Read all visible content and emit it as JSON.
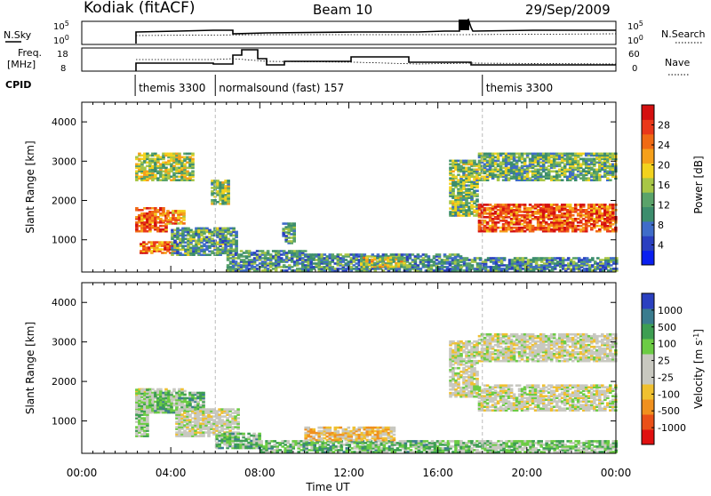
{
  "header": {
    "station": "Kodiak (fitACF)",
    "beam": "Beam 10",
    "date": "29/Sep/2009"
  },
  "top_panels": {
    "nsky_label": "N.Sky",
    "nsearch_label": "N.Search",
    "freq_label_line1": "Freq.",
    "freq_label_line2": "[MHz]",
    "nave_label": "Nave",
    "cpid_label": "CPID",
    "noise_ticks_left": [
      "10^5",
      "10^0"
    ],
    "noise_ticks_right": [
      "10^5",
      "10^0"
    ],
    "freq_ticks": [
      "18",
      "8"
    ],
    "nave_ticks": [
      "60",
      "0"
    ]
  },
  "cpid": [
    {
      "start": 2.4,
      "end": 6.0,
      "label": "themis 3300"
    },
    {
      "start": 6.0,
      "end": 18.0,
      "label": "normalsound (fast) 157"
    },
    {
      "start": 18.0,
      "end": 24.0,
      "label": "themis 3300"
    }
  ],
  "colors": {
    "power_scale": [
      "#0a1ff0",
      "#2a3fc0",
      "#3f6cc9",
      "#3c8d6d",
      "#5aa36a",
      "#a8c646",
      "#f2d21e",
      "#f5a01b",
      "#f06a14",
      "#e9381a",
      "#d41010"
    ],
    "velocity_scale": [
      "#e01010",
      "#ea5018",
      "#f0901e",
      "#f0c030",
      "#c8c8c0",
      "#c8c8c0",
      "#6ccc44",
      "#3d9e52",
      "#3a7c8e",
      "#2a40c0"
    ]
  },
  "chart_data": [
    {
      "type": "heatmap",
      "name": "power-panel",
      "xlabel": "Time UT",
      "ylabel": "Slant Range [km]",
      "xlim": [
        0,
        24
      ],
      "ylim": [
        180,
        4500
      ],
      "x_ticks": [
        "00:00",
        "04:00",
        "08:00",
        "12:00",
        "16:00",
        "20:00",
        "00:00"
      ],
      "y_ticks": [
        1000,
        2000,
        3000,
        4000
      ],
      "colorbar_title": "Power [dB]",
      "colorbar_ticks": [
        4,
        8,
        12,
        16,
        20,
        24,
        28
      ],
      "regions": [
        {
          "t0": 2.4,
          "t1": 3.8,
          "r0": 1200,
          "r1": 1800,
          "level": 0.85
        },
        {
          "t0": 3.8,
          "t1": 4.6,
          "r0": 1400,
          "r1": 1750,
          "level": 0.75
        },
        {
          "t0": 2.6,
          "t1": 4.2,
          "r0": 650,
          "r1": 950,
          "level": 0.8
        },
        {
          "t0": 2.4,
          "t1": 5.0,
          "r0": 2500,
          "r1": 3200,
          "level": 0.5
        },
        {
          "t0": 4.0,
          "t1": 7.0,
          "r0": 600,
          "r1": 1300,
          "level": 0.35
        },
        {
          "t0": 5.8,
          "t1": 6.6,
          "r0": 1900,
          "r1": 2500,
          "level": 0.45
        },
        {
          "t0": 6.5,
          "t1": 10.0,
          "r0": 200,
          "r1": 700,
          "level": 0.3
        },
        {
          "t0": 9.0,
          "t1": 9.5,
          "r0": 900,
          "r1": 1400,
          "level": 0.3
        },
        {
          "t0": 10.0,
          "t1": 17.0,
          "r0": 200,
          "r1": 650,
          "level": 0.3
        },
        {
          "t0": 12.5,
          "t1": 14.5,
          "r0": 300,
          "r1": 560,
          "level": 0.55
        },
        {
          "t0": 16.5,
          "t1": 17.8,
          "r0": 1600,
          "r1": 3000,
          "level": 0.45
        },
        {
          "t0": 17.8,
          "t1": 24.0,
          "r0": 1200,
          "r1": 1900,
          "level": 0.85
        },
        {
          "t0": 17.8,
          "t1": 24.0,
          "r0": 2500,
          "r1": 3200,
          "level": 0.4
        },
        {
          "t0": 17.0,
          "t1": 24.0,
          "r0": 200,
          "r1": 550,
          "level": 0.3
        }
      ]
    },
    {
      "type": "heatmap",
      "name": "velocity-panel",
      "xlabel": "Time UT",
      "ylabel": "Slant Range [km]",
      "xlim": [
        0,
        24
      ],
      "ylim": [
        180,
        4500
      ],
      "x_ticks": [
        "00:00",
        "04:00",
        "08:00",
        "12:00",
        "16:00",
        "20:00",
        "00:00"
      ],
      "y_ticks": [
        1000,
        2000,
        3000,
        4000
      ],
      "colorbar_title": "Velocity [m s^-1]",
      "colorbar_ticks": [
        -1000,
        -500,
        -100,
        -25,
        25,
        100,
        500,
        1000
      ],
      "regions": [
        {
          "t0": 2.4,
          "t1": 4.6,
          "r0": 1200,
          "r1": 1800,
          "level": 0.5
        },
        {
          "t0": 2.4,
          "t1": 3.0,
          "r0": 600,
          "r1": 1800,
          "level": 0.6
        },
        {
          "t0": 3.0,
          "t1": 5.5,
          "r0": 1200,
          "r1": 1700,
          "level": 0.7
        },
        {
          "t0": 4.2,
          "t1": 7.0,
          "r0": 600,
          "r1": 1300,
          "level": 0.5
        },
        {
          "t0": 6.0,
          "t1": 8.0,
          "r0": 300,
          "r1": 700,
          "level": 0.7
        },
        {
          "t0": 8.0,
          "t1": 16.5,
          "r0": 200,
          "r1": 500,
          "level": 0.7
        },
        {
          "t0": 10.0,
          "t1": 14.0,
          "r0": 500,
          "r1": 850,
          "level": 0.35
        },
        {
          "t0": 16.5,
          "t1": 17.8,
          "r0": 1600,
          "r1": 3000,
          "level": 0.5
        },
        {
          "t0": 17.8,
          "t1": 24.0,
          "r0": 1250,
          "r1": 1900,
          "level": 0.5
        },
        {
          "t0": 17.8,
          "t1": 24.0,
          "r0": 2500,
          "r1": 3200,
          "level": 0.5
        },
        {
          "t0": 16.5,
          "t1": 24.0,
          "r0": 200,
          "r1": 500,
          "level": 0.65
        }
      ]
    }
  ]
}
